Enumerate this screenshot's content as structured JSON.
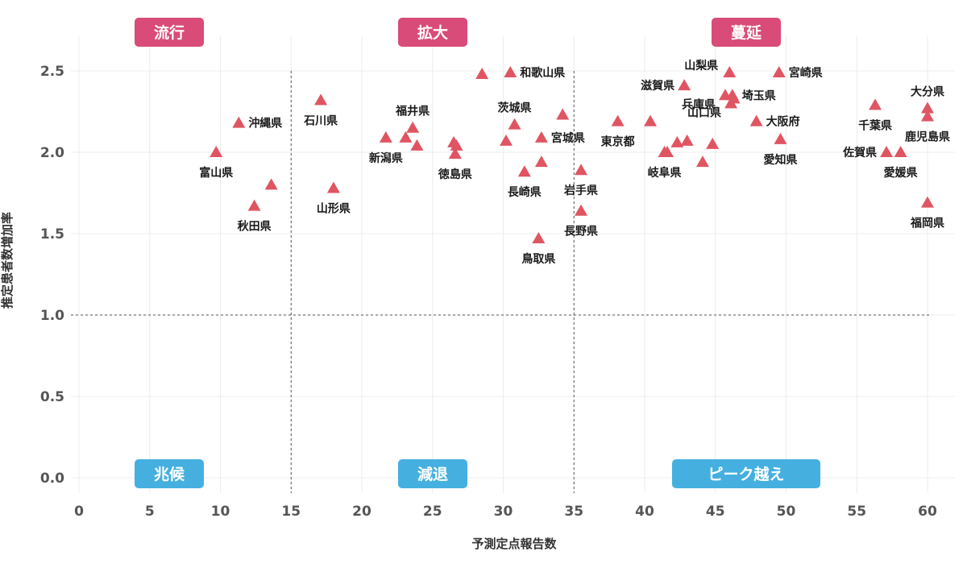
{
  "chart_data": {
    "type": "scatter",
    "title": "",
    "xlabel": "予測定点報告数",
    "ylabel": "推定患者数増加率",
    "xlim": [
      0,
      62
    ],
    "ylim": [
      -0.1,
      2.6
    ],
    "xticks": [
      0,
      5,
      10,
      15,
      20,
      25,
      30,
      35,
      40,
      45,
      50,
      55,
      60
    ],
    "yticks": [
      0.0,
      0.5,
      1.0,
      1.5,
      2.0,
      2.5
    ],
    "ytick_labels": [
      "0.0",
      "0.5",
      "1.0",
      "1.5",
      "2.0",
      "2.5"
    ],
    "reference_lines": {
      "x": [
        15,
        35
      ],
      "y": 1.0
    },
    "grid": true,
    "marker": "triangle",
    "marker_color": "#e05562",
    "quadrant_labels": [
      {
        "text": "流行",
        "color": "#d94b78"
      },
      {
        "text": "拡大",
        "color": "#d94b78"
      },
      {
        "text": "蔓延",
        "color": "#d94b78"
      },
      {
        "text": "兆候",
        "color": "#45b0e0"
      },
      {
        "text": "減退",
        "color": "#45b0e0"
      },
      {
        "text": "ピーク越え",
        "color": "#45b0e0"
      }
    ],
    "points": [
      {
        "label": "富山県",
        "x": 9.7,
        "y": 2.0,
        "pos": "below"
      },
      {
        "label": "沖縄県",
        "x": 11.3,
        "y": 2.18,
        "pos": "right"
      },
      {
        "label": "",
        "x": 13.6,
        "y": 1.8
      },
      {
        "label": "秋田県",
        "x": 12.4,
        "y": 1.67,
        "pos": "below"
      },
      {
        "label": "石川県",
        "x": 17.1,
        "y": 2.32,
        "pos": "below"
      },
      {
        "label": "山形県",
        "x": 18.0,
        "y": 1.78,
        "pos": "below"
      },
      {
        "label": "新潟県",
        "x": 21.7,
        "y": 2.09,
        "pos": "below"
      },
      {
        "label": "",
        "x": 23.1,
        "y": 2.09
      },
      {
        "label": "福井県",
        "x": 23.6,
        "y": 2.15,
        "pos": "above"
      },
      {
        "label": "",
        "x": 23.9,
        "y": 2.04
      },
      {
        "label": "",
        "x": 26.5,
        "y": 2.06
      },
      {
        "label": "",
        "x": 26.7,
        "y": 2.04
      },
      {
        "label": "徳島県",
        "x": 26.6,
        "y": 1.99,
        "pos": "below"
      },
      {
        "label": "",
        "x": 28.5,
        "y": 2.48
      },
      {
        "label": "和歌山県",
        "x": 30.5,
        "y": 2.49,
        "pos": "right"
      },
      {
        "label": "茨城県",
        "x": 30.8,
        "y": 2.17,
        "pos": "above"
      },
      {
        "label": "",
        "x": 30.2,
        "y": 2.07
      },
      {
        "label": "長崎県",
        "x": 31.5,
        "y": 1.88,
        "pos": "below"
      },
      {
        "label": "",
        "x": 32.7,
        "y": 1.94
      },
      {
        "label": "宮城県",
        "x": 32.7,
        "y": 2.09,
        "pos": "right"
      },
      {
        "label": "",
        "x": 34.2,
        "y": 2.23
      },
      {
        "label": "鳥取県",
        "x": 32.5,
        "y": 1.47,
        "pos": "below"
      },
      {
        "label": "岩手県",
        "x": 35.5,
        "y": 1.89,
        "pos": "below"
      },
      {
        "label": "長野県",
        "x": 35.5,
        "y": 1.64,
        "pos": "below"
      },
      {
        "label": "東京都",
        "x": 38.1,
        "y": 2.19,
        "pos": "below"
      },
      {
        "label": "",
        "x": 40.4,
        "y": 2.19
      },
      {
        "label": "岐阜県",
        "x": 41.4,
        "y": 2.0,
        "pos": "below"
      },
      {
        "label": "",
        "x": 41.6,
        "y": 2.0
      },
      {
        "label": "",
        "x": 42.3,
        "y": 2.06
      },
      {
        "label": "",
        "x": 43.0,
        "y": 2.07
      },
      {
        "label": "",
        "x": 44.1,
        "y": 1.94
      },
      {
        "label": "",
        "x": 44.8,
        "y": 2.05
      },
      {
        "label": "滋賀県",
        "x": 42.8,
        "y": 2.41,
        "pos": "left"
      },
      {
        "label": "兵庫県",
        "x": 45.7,
        "y": 2.35,
        "pos": "below-left"
      },
      {
        "label": "山梨県",
        "x": 46.0,
        "y": 2.49,
        "pos": "above-left"
      },
      {
        "label": "埼玉県",
        "x": 46.2,
        "y": 2.35,
        "pos": "right"
      },
      {
        "label": "山口県",
        "x": 46.1,
        "y": 2.3,
        "pos": "below-left"
      },
      {
        "label": "",
        "x": 46.3,
        "y": 2.33
      },
      {
        "label": "大阪府",
        "x": 47.9,
        "y": 2.19,
        "pos": "right"
      },
      {
        "label": "宮崎県",
        "x": 49.5,
        "y": 2.49,
        "pos": "right"
      },
      {
        "label": "愛知県",
        "x": 49.6,
        "y": 2.08,
        "pos": "below"
      },
      {
        "label": "千葉県",
        "x": 56.3,
        "y": 2.29,
        "pos": "below"
      },
      {
        "label": "佐賀県",
        "x": 57.1,
        "y": 2.0,
        "pos": "left"
      },
      {
        "label": "愛媛県",
        "x": 58.1,
        "y": 2.0,
        "pos": "below"
      },
      {
        "label": "大分県",
        "x": 60.0,
        "y": 2.27,
        "pos": "above"
      },
      {
        "label": "鹿児島県",
        "x": 60.0,
        "y": 2.22,
        "pos": "below"
      },
      {
        "label": "福岡県",
        "x": 60.0,
        "y": 1.69,
        "pos": "below"
      }
    ]
  }
}
